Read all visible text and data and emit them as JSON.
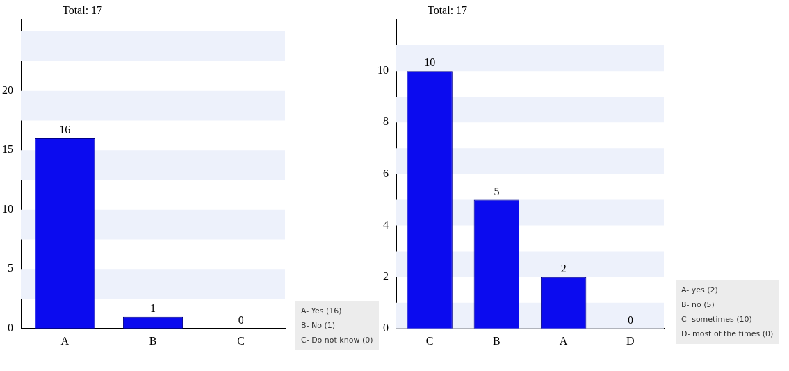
{
  "chart_data": [
    {
      "type": "bar",
      "title": "Total: 17",
      "categories": [
        "A",
        "B",
        "C"
      ],
      "values": [
        16,
        1,
        0
      ],
      "color": "#0b0bef",
      "ylim": [
        0,
        26
      ],
      "yticks": [
        0,
        5,
        10,
        15,
        20
      ],
      "data_labels": true,
      "bands": [
        {
          "axis": "y",
          "from": 2.5,
          "to": 5,
          "color": "#edf1fb"
        },
        {
          "axis": "y",
          "from": 7.5,
          "to": 10,
          "color": "#edf1fb"
        },
        {
          "axis": "y",
          "from": 12.5,
          "to": 15,
          "color": "#edf1fb"
        },
        {
          "axis": "y",
          "from": 17.5,
          "to": 20,
          "color": "#edf1fb"
        },
        {
          "axis": "y",
          "from": 22.5,
          "to": 25,
          "color": "#edf1fb"
        }
      ],
      "annotations": [
        "A-  Yes (16)",
        "B-  No (1)",
        "C-  Do not know (0)"
      ]
    },
    {
      "type": "bar",
      "title": "Total: 17",
      "categories": [
        "C",
        "B",
        "A",
        "D"
      ],
      "values": [
        10,
        5,
        2,
        0
      ],
      "color": "#0b0bef",
      "ylim": [
        0,
        12
      ],
      "yticks": [
        0,
        2,
        4,
        6,
        8,
        10
      ],
      "data_labels": true,
      "bands": [
        {
          "axis": "y",
          "from": 0,
          "to": 1,
          "color": "#edf1fb"
        },
        {
          "axis": "y",
          "from": 2,
          "to": 3,
          "color": "#edf1fb"
        },
        {
          "axis": "y",
          "from": 4,
          "to": 5,
          "color": "#edf1fb"
        },
        {
          "axis": "y",
          "from": 6,
          "to": 7,
          "color": "#edf1fb"
        },
        {
          "axis": "y",
          "from": 8,
          "to": 9,
          "color": "#edf1fb"
        },
        {
          "axis": "y",
          "from": 10,
          "to": 11,
          "color": "#edf1fb"
        }
      ],
      "annotations": [
        "A-  yes (2)",
        "B-  no (5)",
        "C-  sometimes (10)",
        "D-  most of the times (0)"
      ]
    }
  ]
}
